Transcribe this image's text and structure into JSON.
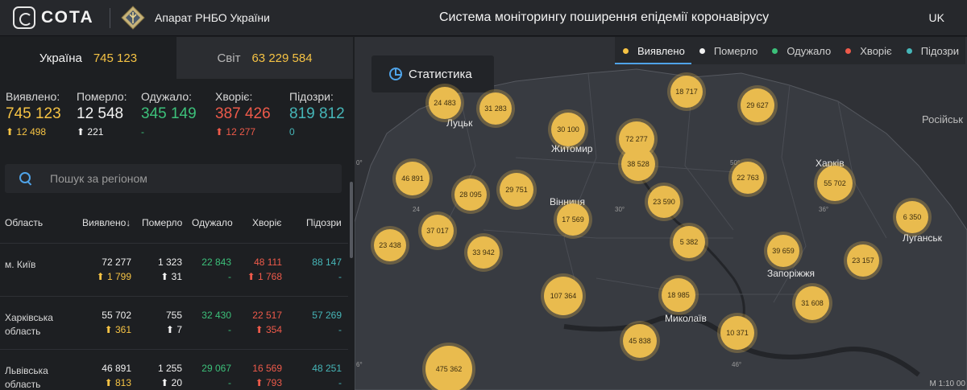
{
  "header": {
    "logo_text": "СОТА",
    "org": "Апарат РНБО України",
    "title": "Система моніторингу поширення епідемії коронавірусу",
    "lang": "UK"
  },
  "tabs": [
    {
      "label": "Україна",
      "value": "745 123"
    },
    {
      "label": "Світ",
      "value": "63 229 584"
    }
  ],
  "totals": [
    {
      "label": "Виявлено:",
      "value": "745 123",
      "delta": "12 498",
      "color": "#f6c344",
      "arrow": true
    },
    {
      "label": "Померло:",
      "value": "12 548",
      "delta": "221",
      "color": "#f2f2f2",
      "arrow": true
    },
    {
      "label": "Одужало:",
      "value": "345 149",
      "delta": "-",
      "color": "#3cc07a",
      "arrow": false
    },
    {
      "label": "Хворіє:",
      "value": "387 426",
      "delta": "12 277",
      "color": "#ee5a4a",
      "arrow": true
    },
    {
      "label": "Підозри:",
      "value": "819 812",
      "delta": "0",
      "color": "#46b6b8",
      "arrow": false
    }
  ],
  "search": {
    "placeholder": "Пошук за регіоном"
  },
  "table": {
    "headers": [
      "Область",
      "Виявлено",
      "Померло",
      "Одужало",
      "Хворіє",
      "Підозри"
    ],
    "sort_arrow": "↓",
    "rows": [
      {
        "region": "м. Київ",
        "detected": "72 277",
        "detected_d": "1 799",
        "died": "1 323",
        "died_d": "31",
        "recovered": "22 843",
        "recovered_d": "-",
        "sick": "48 111",
        "sick_d": "1 768",
        "suspected": "88 147",
        "suspected_d": "-"
      },
      {
        "region": "Харківська область",
        "detected": "55 702",
        "detected_d": "361",
        "died": "755",
        "died_d": "7",
        "recovered": "32 430",
        "recovered_d": "-",
        "sick": "22 517",
        "sick_d": "354",
        "suspected": "57 269",
        "suspected_d": "-"
      },
      {
        "region": "Львівська область",
        "detected": "46 891",
        "detected_d": "813",
        "died": "1 255",
        "died_d": "20",
        "recovered": "29 067",
        "recovered_d": "-",
        "sick": "16 569",
        "sick_d": "793",
        "suspected": "48 251",
        "suspected_d": "-"
      }
    ]
  },
  "map": {
    "stat_button": "Статистика",
    "legend": [
      {
        "label": "Виявлено",
        "color": "#f6c344"
      },
      {
        "label": "Померло",
        "color": "#f2f2f2"
      },
      {
        "label": "Одужало",
        "color": "#3cc07a"
      },
      {
        "label": "Хворіє",
        "color": "#ee5a4a"
      },
      {
        "label": "Підозри",
        "color": "#46b6b8"
      }
    ],
    "bubbles": [
      "24 483",
      "31 283",
      "18 717",
      "29 627",
      "30 100",
      "72 277",
      "38 528",
      "46 891",
      "28 095",
      "29 751",
      "23 590",
      "22 763",
      "55 702",
      "6 350",
      "17 569",
      "37 017",
      "23 438",
      "33 942",
      "5 382",
      "39 659",
      "23 157",
      "107 364",
      "18 985",
      "31 608",
      "45 838",
      "10 371",
      "475 362"
    ],
    "cities": [
      "Луцьк",
      "Житомир",
      "Вінниця",
      "Харків",
      "Луганськ",
      "Запоріжжя",
      "Миколаїв"
    ],
    "country": "Російськ",
    "grid_labels": [
      "0°",
      "24",
      "30°",
      "36°",
      "50°",
      "46°",
      "6°"
    ],
    "scale": "M 1:10 00"
  }
}
